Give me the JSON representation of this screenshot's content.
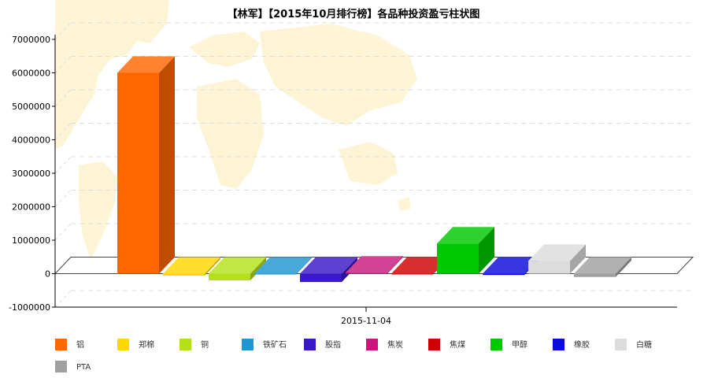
{
  "chart_data": {
    "type": "bar",
    "title": "【林军】【2015年10月排行榜】各品种投资盈亏柱状图",
    "xlabel": "",
    "ylabel": "",
    "categories": [
      "2015-11-04"
    ],
    "ylim": [
      -1000000,
      7000000
    ],
    "yticks": [
      7000000,
      6000000,
      5000000,
      4000000,
      3000000,
      2000000,
      1000000,
      0,
      -1000000
    ],
    "grid": true,
    "legend_position": "bottom",
    "style": "3d",
    "series": [
      {
        "name": "铝",
        "color": "#ff6600",
        "values": [
          6000000
        ]
      },
      {
        "name": "郑棉",
        "color": "#ffd700",
        "values": [
          -60000
        ]
      },
      {
        "name": "铜",
        "color": "#b4e01a",
        "values": [
          -200000
        ]
      },
      {
        "name": "铁矿石",
        "color": "#1e96d2",
        "values": [
          -10000
        ]
      },
      {
        "name": "股指",
        "color": "#3a18c8",
        "values": [
          -250000
        ]
      },
      {
        "name": "焦炭",
        "color": "#c8187e",
        "values": [
          30000
        ]
      },
      {
        "name": "焦煤",
        "color": "#d00000",
        "values": [
          -20000
        ]
      },
      {
        "name": "甲醇",
        "color": "#00c800",
        "values": [
          900000
        ]
      },
      {
        "name": "橡胶",
        "color": "#0a0adc",
        "values": [
          -40000
        ]
      },
      {
        "name": "白糖",
        "color": "#dcdcdc",
        "values": [
          380000
        ]
      },
      {
        "name": "PTA",
        "color": "#a0a0a0",
        "values": [
          -100000
        ]
      }
    ]
  }
}
